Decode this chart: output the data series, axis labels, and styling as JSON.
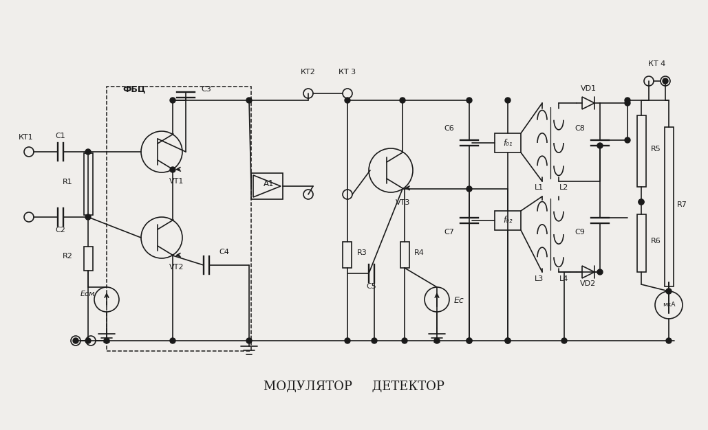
{
  "bg_color": "#f0eeeb",
  "line_color": "#1a1a1a",
  "title": "МОДУЛЯТОР     ДЕТЕКТОР",
  "label_fbz": "ФБЦ",
  "label_C3": "C3",
  "label_C1": "C1",
  "label_C2": "C2",
  "label_C4": "C4",
  "label_C5": "C5",
  "label_C6": "C6",
  "label_C7": "C7",
  "label_C8": "C8",
  "label_C9": "C9",
  "label_R1": "R1",
  "label_R2": "R2",
  "label_R3": "R3",
  "label_R4": "R4",
  "label_R5": "R5",
  "label_R6": "R6",
  "label_R7": "R7",
  "label_VT1": "VT1",
  "label_VT2": "VT2",
  "label_VT3": "VT3",
  "label_VD1": "VD1",
  "label_VD2": "VD2",
  "label_A1": "A1",
  "label_KT1": "КТ1",
  "label_KT2": "КТ2",
  "label_KT3": "КТ3",
  "label_KT4": "КТ4",
  "label_L1": "L1",
  "label_L2": "L2",
  "label_L3": "L3",
  "label_L4": "L4",
  "label_f01": "f₀₁",
  "label_f02": "f₀₂",
  "label_Esm": "Eсм",
  "label_Ec": "Eс",
  "label_mkA": "мкА"
}
